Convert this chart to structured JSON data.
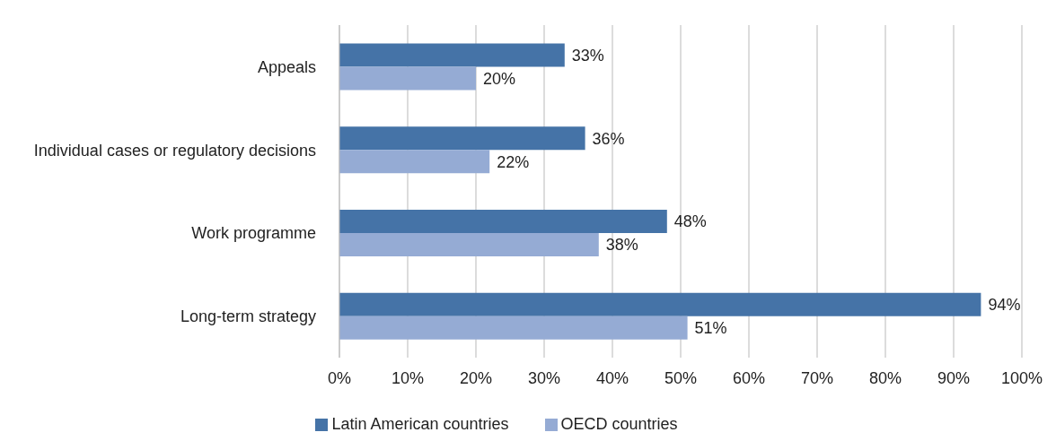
{
  "chart_data": {
    "type": "bar",
    "orientation": "horizontal",
    "categories": [
      "Appeals",
      "Individual cases or regulatory decisions",
      "Work programme",
      "Long-term strategy"
    ],
    "series": [
      {
        "name": "Latin American countries",
        "color": "#4573a7",
        "values": [
          33,
          36,
          48,
          94
        ],
        "value_labels": [
          "33%",
          "36%",
          "48%",
          "94%"
        ]
      },
      {
        "name": "OECD countries",
        "color": "#95abd4",
        "values": [
          20,
          22,
          38,
          51
        ],
        "value_labels": [
          "20%",
          "22%",
          "38%",
          "51%"
        ]
      }
    ],
    "xlim": [
      0,
      100
    ],
    "xticks": [
      {
        "value": 0,
        "label": "0%"
      },
      {
        "value": 10,
        "label": "10%"
      },
      {
        "value": 20,
        "label": "20%"
      },
      {
        "value": 30,
        "label": "30%"
      },
      {
        "value": 40,
        "label": "40%"
      },
      {
        "value": 50,
        "label": "50%"
      },
      {
        "value": 60,
        "label": "60%"
      },
      {
        "value": 70,
        "label": "70%"
      },
      {
        "value": 80,
        "label": "80%"
      },
      {
        "value": 90,
        "label": "90%"
      },
      {
        "value": 100,
        "label": "100%"
      }
    ],
    "grid": "x",
    "legend": "bottom"
  }
}
